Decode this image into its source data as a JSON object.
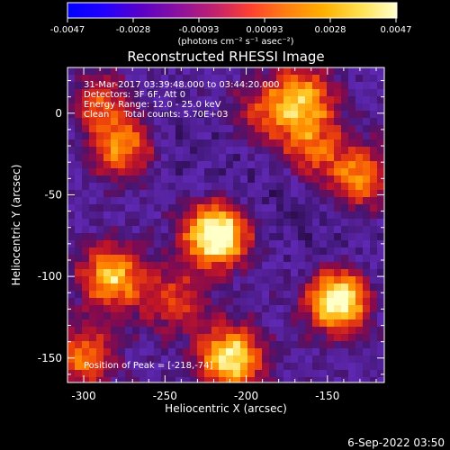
{
  "colorbar": {
    "tick_labels": [
      "-0.0047",
      "-0.0028",
      "-0.00093",
      "0.00093",
      "0.0028",
      "0.0047"
    ],
    "units": "(photons cm⁻² s⁻¹ asec⁻²)",
    "range": [
      -0.0047,
      0.0047
    ],
    "stops": [
      "#0000ff",
      "#2200ff",
      "#5a00c8",
      "#8a10a0",
      "#c02070",
      "#ff4030",
      "#ff8010",
      "#ffb000",
      "#ffe050",
      "#ffffcc"
    ]
  },
  "title": "Reconstructed RHESSI Image",
  "info": {
    "time_range": "31-Mar-2017 03:39:48.000 to 03:44:20.000",
    "detectors": "Detectors: 3F 6F, Att 0",
    "energy_range": "Energy Range: 12.0 - 25.0 keV",
    "clean_line": "Clean     Total counts: 5.70E+03"
  },
  "peak_label": "Position of Peak = [-218,-74]",
  "x_axis": {
    "label": "Heliocentric X (arcsec)",
    "range": [
      -310,
      -115
    ],
    "ticks": [
      -300,
      -250,
      -200,
      -150
    ]
  },
  "y_axis": {
    "label": "Heliocentric Y (arcsec)",
    "range": [
      -165,
      28
    ],
    "ticks": [
      0,
      -50,
      -100,
      -150
    ]
  },
  "map_sources": [
    {
      "x": -218,
      "y": -74,
      "amp": 1.0
    },
    {
      "x": -143,
      "y": -114,
      "amp": 0.92
    },
    {
      "x": -210,
      "y": -150,
      "amp": 0.8
    },
    {
      "x": -283,
      "y": -100,
      "amp": 0.68
    },
    {
      "x": -275,
      "y": -20,
      "amp": 0.62
    },
    {
      "x": -290,
      "y": 8,
      "amp": 0.5
    },
    {
      "x": -165,
      "y": 10,
      "amp": 0.58
    },
    {
      "x": -130,
      "y": -40,
      "amp": 0.55
    },
    {
      "x": -160,
      "y": -20,
      "amp": 0.45
    },
    {
      "x": -190,
      "y": 0,
      "amp": 0.35
    },
    {
      "x": -245,
      "y": -115,
      "amp": 0.4
    },
    {
      "x": -300,
      "y": -150,
      "amp": 0.5
    }
  ],
  "footer_date": "6-Sep-2022 03:50"
}
